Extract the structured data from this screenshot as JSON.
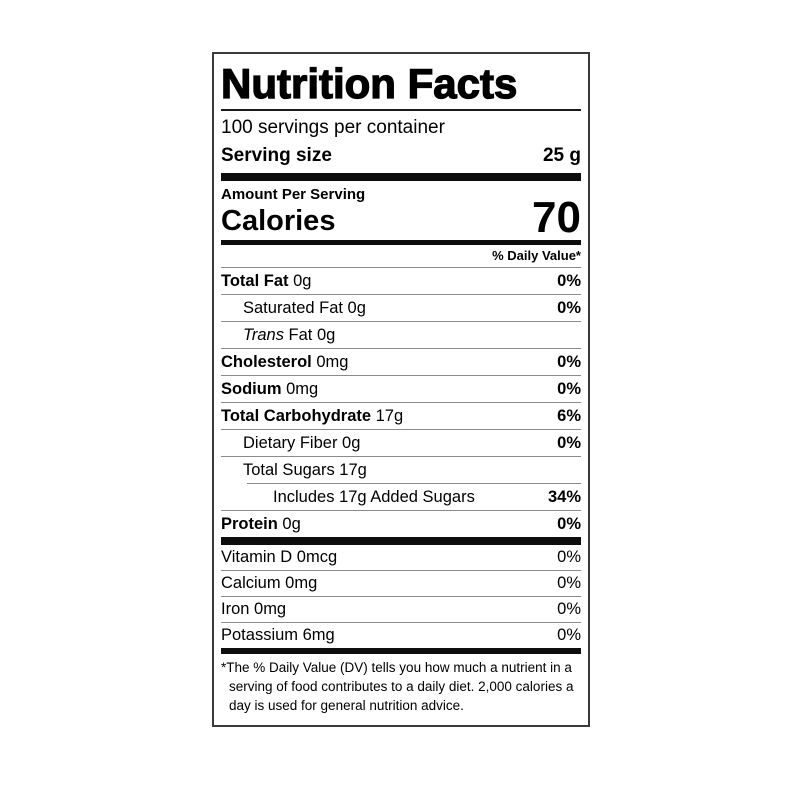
{
  "colors": {
    "text": "#000000",
    "bar": "#0d0d0d",
    "hairline": "#8b8b8b",
    "border": "#3a3a3a",
    "background": "#ffffff"
  },
  "label": {
    "title": "Nutrition Facts",
    "servings_per_container": "100 servings per container",
    "serving_size": {
      "label": "Serving size",
      "value": "25 g"
    },
    "amount_per_serving": "Amount Per Serving",
    "calories": {
      "label": "Calories",
      "value": "70"
    },
    "daily_value_header": "% Daily Value*",
    "nutrient_rows": [
      {
        "bold": "Total Fat",
        "text": " 0g",
        "dv": "0%",
        "dv_bold": true,
        "indent": 0
      },
      {
        "text": "Saturated Fat 0g",
        "dv": "0%",
        "dv_bold": true,
        "indent": 1
      },
      {
        "italic": "Trans",
        "text": " Fat 0g",
        "dv": "",
        "dv_bold": false,
        "indent": 1
      },
      {
        "bold": "Cholesterol",
        "text": " 0mg",
        "dv": "0%",
        "dv_bold": true,
        "indent": 0
      },
      {
        "bold": "Sodium",
        "text": " 0mg",
        "dv": "0%",
        "dv_bold": true,
        "indent": 0
      },
      {
        "bold": "Total Carbohydrate",
        "text": " 17g",
        "dv": "6%",
        "dv_bold": true,
        "indent": 0
      },
      {
        "text": "Dietary Fiber 0g",
        "dv": "0%",
        "dv_bold": true,
        "indent": 1
      },
      {
        "text": "Total Sugars 17g",
        "dv": "",
        "dv_bold": false,
        "indent": 1
      },
      {
        "text": "Includes 17g Added Sugars",
        "dv": "34%",
        "dv_bold": true,
        "indent": 2,
        "inset_rule": true
      },
      {
        "bold": "Protein",
        "text": " 0g",
        "dv": "0%",
        "dv_bold": true,
        "indent": 0
      }
    ],
    "vitamin_rows": [
      {
        "text": "Vitamin D 0mcg",
        "dv": "0%"
      },
      {
        "text": "Calcium 0mg",
        "dv": "0%"
      },
      {
        "text": "Iron 0mg",
        "dv": "0%"
      },
      {
        "text": "Potassium 6mg",
        "dv": "0%"
      }
    ],
    "footnote": "*The % Daily Value (DV) tells you how much a nutrient in a serving of food contributes to a daily diet. 2,000 calories a day is used for general nutrition advice."
  }
}
